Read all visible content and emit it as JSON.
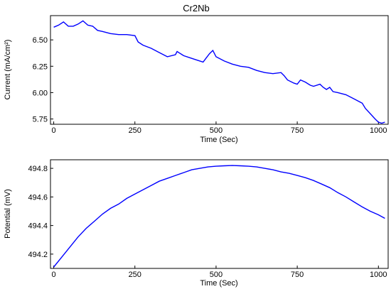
{
  "figure": {
    "title": "Cr2Nb",
    "line_color": "#0000ff"
  },
  "chart_data": [
    {
      "type": "line",
      "title": "Cr2Nb",
      "xlabel": "Time (Sec)",
      "ylabel": "Current (mA/cm²)",
      "xlim": [
        -10,
        1030
      ],
      "ylim": [
        5.7,
        6.73
      ],
      "xticks": [
        0,
        250,
        500,
        750,
        1000
      ],
      "yticks": [
        5.75,
        6.0,
        6.25,
        6.5
      ],
      "ytick_labels": [
        "5.75",
        "6.00",
        "6.25",
        "6.50"
      ],
      "grid": false,
      "series": [
        {
          "x": [
            0,
            15,
            30,
            45,
            60,
            75,
            90,
            105,
            120,
            135,
            150,
            175,
            200,
            225,
            250,
            260,
            275,
            300,
            325,
            350,
            375,
            380,
            400,
            420,
            440,
            460,
            470,
            480,
            490,
            500,
            525,
            550,
            575,
            600,
            625,
            650,
            675,
            700,
            710,
            720,
            740,
            750,
            760,
            775,
            790,
            800,
            820,
            830,
            840,
            850,
            860,
            875,
            900,
            925,
            950,
            960,
            975,
            990,
            1000,
            1010,
            1020
          ],
          "y": [
            6.62,
            6.64,
            6.67,
            6.63,
            6.63,
            6.65,
            6.68,
            6.64,
            6.63,
            6.59,
            6.58,
            6.56,
            6.55,
            6.55,
            6.54,
            6.48,
            6.45,
            6.42,
            6.38,
            6.34,
            6.36,
            6.39,
            6.35,
            6.33,
            6.31,
            6.29,
            6.33,
            6.37,
            6.4,
            6.34,
            6.3,
            6.27,
            6.25,
            6.24,
            6.21,
            6.19,
            6.18,
            6.19,
            6.16,
            6.12,
            6.09,
            6.08,
            6.12,
            6.1,
            6.07,
            6.06,
            6.08,
            6.05,
            6.03,
            6.05,
            6.01,
            6.0,
            5.98,
            5.94,
            5.9,
            5.85,
            5.8,
            5.75,
            5.72,
            5.71,
            5.72
          ]
        }
      ]
    },
    {
      "type": "line",
      "title": "",
      "xlabel": "Time (Sec)",
      "ylabel": "Potential (mV)",
      "xlim": [
        -10,
        1030
      ],
      "ylim": [
        494.1,
        494.86
      ],
      "xticks": [
        0,
        250,
        500,
        750,
        1000
      ],
      "yticks": [
        494.2,
        494.4,
        494.6,
        494.8
      ],
      "ytick_labels": [
        "494.2",
        "494.4",
        "494.6",
        "494.8"
      ],
      "grid": false,
      "series": [
        {
          "x": [
            0,
            25,
            50,
            75,
            100,
            125,
            150,
            175,
            200,
            225,
            250,
            275,
            300,
            325,
            350,
            375,
            400,
            425,
            450,
            475,
            500,
            525,
            550,
            575,
            600,
            625,
            650,
            675,
            700,
            725,
            750,
            775,
            800,
            825,
            850,
            875,
            900,
            925,
            950,
            975,
            1000,
            1020
          ],
          "y": [
            494.11,
            494.18,
            494.25,
            494.32,
            494.38,
            494.43,
            494.48,
            494.52,
            494.55,
            494.59,
            494.62,
            494.65,
            494.68,
            494.71,
            494.73,
            494.75,
            494.77,
            494.79,
            494.8,
            494.81,
            494.815,
            494.818,
            494.82,
            494.818,
            494.815,
            494.81,
            494.8,
            494.79,
            494.775,
            494.765,
            494.75,
            494.735,
            494.715,
            494.69,
            494.665,
            494.63,
            494.6,
            494.565,
            494.53,
            494.5,
            494.475,
            494.45
          ]
        }
      ]
    }
  ]
}
